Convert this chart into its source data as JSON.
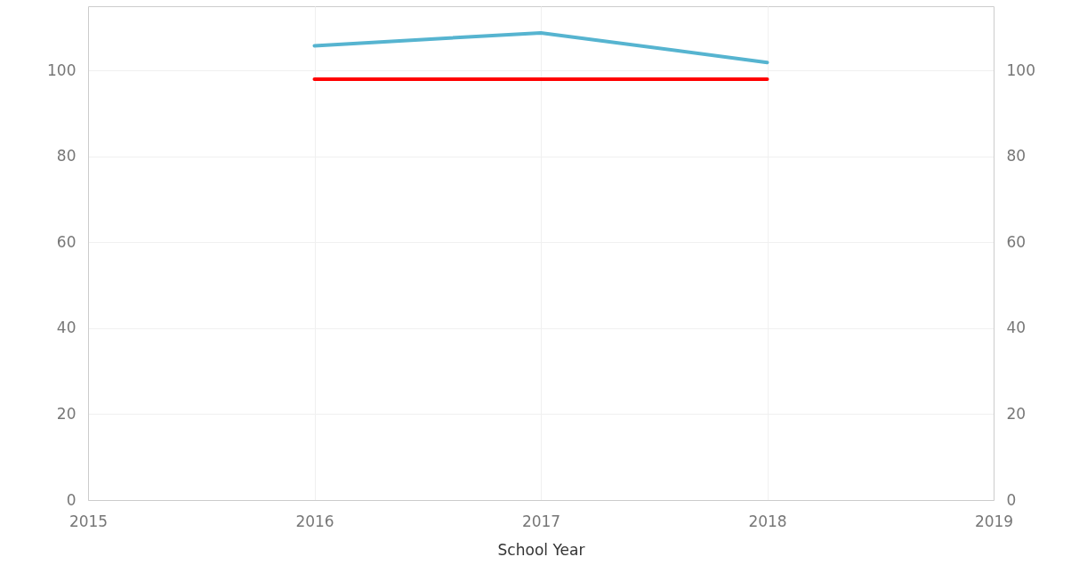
{
  "chart_data": {
    "type": "line",
    "xlabel": "School Year",
    "x": [
      2016,
      2017,
      2018
    ],
    "series": [
      {
        "color": "#56b4d0",
        "values": [
          105.8,
          108.8,
          101.9
        ]
      },
      {
        "color": "#ff0000",
        "values": [
          98,
          98,
          98
        ],
        "axis": "y2"
      }
    ],
    "xlim": [
      2015,
      2019
    ],
    "xticks": [
      2015,
      2016,
      2017,
      2018,
      2019
    ],
    "ylim": [
      0,
      115
    ],
    "yticks": [
      0,
      20,
      40,
      60,
      80,
      100
    ],
    "y2lim": [
      0,
      115
    ],
    "y2ticks": [
      0,
      20,
      40,
      60,
      80,
      100
    ],
    "grid": true
  }
}
